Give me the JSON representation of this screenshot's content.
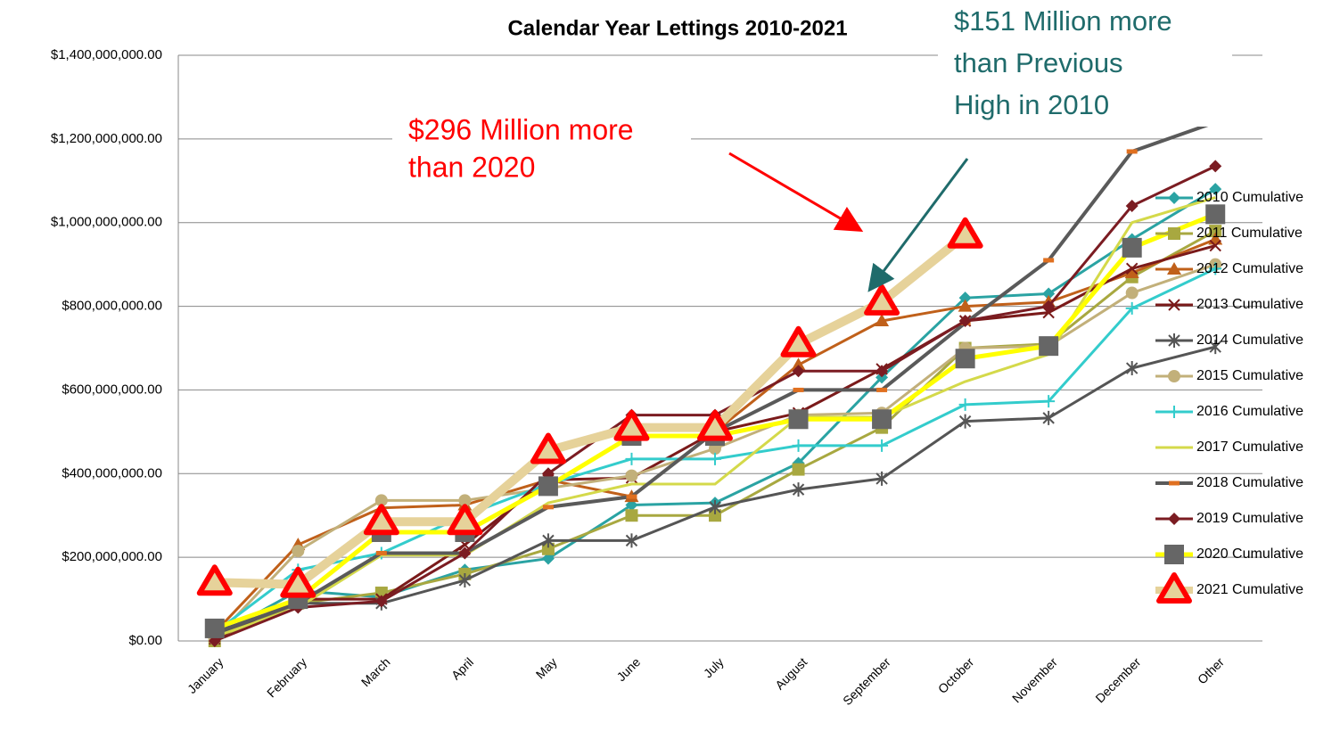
{
  "chart_data": {
    "type": "line",
    "title": "Calendar Year Lettings 2010-2021",
    "annotations": [
      {
        "lines": [
          "$296 Million more",
          "than 2020"
        ],
        "color": "#ff0000"
      },
      {
        "lines": [
          "$151 Million more",
          "than Previous",
          "High in 2010"
        ],
        "color": "#1f6b6b"
      }
    ],
    "categories": [
      "January",
      "February",
      "March",
      "April",
      "May",
      "June",
      "July",
      "August",
      "September",
      "October",
      "November",
      "December",
      "Other"
    ],
    "ylim": [
      0,
      1400000000
    ],
    "yticks": [
      {
        "value": 0,
        "label": "$0.00"
      },
      {
        "value": 200000000,
        "label": "$200,000,000.00"
      },
      {
        "value": 400000000,
        "label": "$400,000,000.00"
      },
      {
        "value": 600000000,
        "label": "$600,000,000.00"
      },
      {
        "value": 800000000,
        "label": "$800,000,000.00"
      },
      {
        "value": 1000000000,
        "label": "$1,000,000,000.00"
      },
      {
        "value": 1200000000,
        "label": "$1,200,000,000.00"
      },
      {
        "value": 1400000000,
        "label": "$1,400,000,000.00"
      }
    ],
    "grid": true,
    "legend": "right",
    "series": [
      {
        "name": "2010 Cumulative",
        "color": "#2aa3a3",
        "marker": "diamond",
        "marker_color": "#2aa3a3",
        "line_width": 3,
        "values": [
          10000000,
          120000000,
          105000000,
          170000000,
          197000000,
          325000000,
          330000000,
          425000000,
          630000000,
          820000000,
          830000000,
          960000000,
          1080000000
        ]
      },
      {
        "name": "2011 Cumulative",
        "color": "#a8a840",
        "marker": "square",
        "marker_color": "#a8a840",
        "line_width": 3,
        "values": [
          0,
          90000000,
          115000000,
          160000000,
          220000000,
          300000000,
          300000000,
          410000000,
          510000000,
          700000000,
          710000000,
          870000000,
          980000000
        ]
      },
      {
        "name": "2012 Cumulative",
        "color": "#c0601a",
        "marker": "triangle",
        "marker_color": "#c0601a",
        "line_width": 3,
        "values": [
          20000000,
          230000000,
          318000000,
          325000000,
          385000000,
          345000000,
          500000000,
          660000000,
          765000000,
          800000000,
          810000000,
          880000000,
          960000000
        ]
      },
      {
        "name": "2013 Cumulative",
        "color": "#7a1a1a",
        "marker": "x",
        "marker_color": "#7a1a1a",
        "line_width": 3,
        "values": [
          5000000,
          100000000,
          100000000,
          230000000,
          385000000,
          390000000,
          500000000,
          545000000,
          650000000,
          765000000,
          785000000,
          890000000,
          945000000
        ]
      },
      {
        "name": "2014 Cumulative",
        "color": "#555555",
        "marker": "asterisk",
        "marker_color": "#555555",
        "line_width": 3,
        "values": [
          15000000,
          90000000,
          90000000,
          145000000,
          240000000,
          240000000,
          320000000,
          362000000,
          388000000,
          525000000,
          533000000,
          652000000,
          703000000
        ]
      },
      {
        "name": "2015 Cumulative",
        "color": "#c2b07a",
        "marker": "circle",
        "marker_color": "#c2b07a",
        "line_width": 3,
        "values": [
          5000000,
          215000000,
          336000000,
          336000000,
          365000000,
          395000000,
          460000000,
          540000000,
          545000000,
          700000000,
          705000000,
          832000000,
          900000000
        ]
      },
      {
        "name": "2016 Cumulative",
        "color": "#33cccc",
        "marker": "plus",
        "marker_color": "#33cccc",
        "line_width": 3,
        "values": [
          20000000,
          170000000,
          210000000,
          300000000,
          375000000,
          435000000,
          435000000,
          467000000,
          467000000,
          565000000,
          573000000,
          795000000,
          890000000
        ]
      },
      {
        "name": "2017 Cumulative",
        "color": "#d4d94a",
        "marker": "none",
        "marker_color": "#d4d94a",
        "line_width": 3,
        "values": [
          10000000,
          80000000,
          205000000,
          205000000,
          330000000,
          375000000,
          375000000,
          535000000,
          535000000,
          620000000,
          685000000,
          1000000000,
          1060000000
        ]
      },
      {
        "name": "2018 Cumulative",
        "color": "#5a5a5a",
        "marker": "dash",
        "marker_color": "#e07020",
        "line_width": 4,
        "values": [
          20000000,
          90000000,
          210000000,
          210000000,
          320000000,
          345000000,
          500000000,
          600000000,
          600000000,
          760000000,
          910000000,
          1170000000,
          1240000000
        ]
      },
      {
        "name": "2019 Cumulative",
        "color": "#7b1c22",
        "marker": "diamond",
        "marker_color": "#7b1c22",
        "line_width": 3,
        "values": [
          0,
          80000000,
          95000000,
          210000000,
          400000000,
          540000000,
          540000000,
          645000000,
          645000000,
          765000000,
          800000000,
          1040000000,
          1135000000
        ]
      },
      {
        "name": "2020 Cumulative",
        "color": "#ffff00",
        "marker": "square",
        "marker_color": "#666666",
        "line_width": 5,
        "values": [
          30000000,
          100000000,
          260000000,
          260000000,
          370000000,
          490000000,
          490000000,
          530000000,
          530000000,
          675000000,
          705000000,
          940000000,
          1020000000
        ]
      },
      {
        "name": "2021 Cumulative",
        "color": "#e6d29a",
        "marker": "bigtriangle",
        "marker_color": "#ff0000",
        "line_width": 10,
        "values": [
          140000000,
          135000000,
          285000000,
          285000000,
          455000000,
          510000000,
          510000000,
          710000000,
          810000000,
          970000000,
          null,
          null,
          null
        ]
      }
    ]
  }
}
